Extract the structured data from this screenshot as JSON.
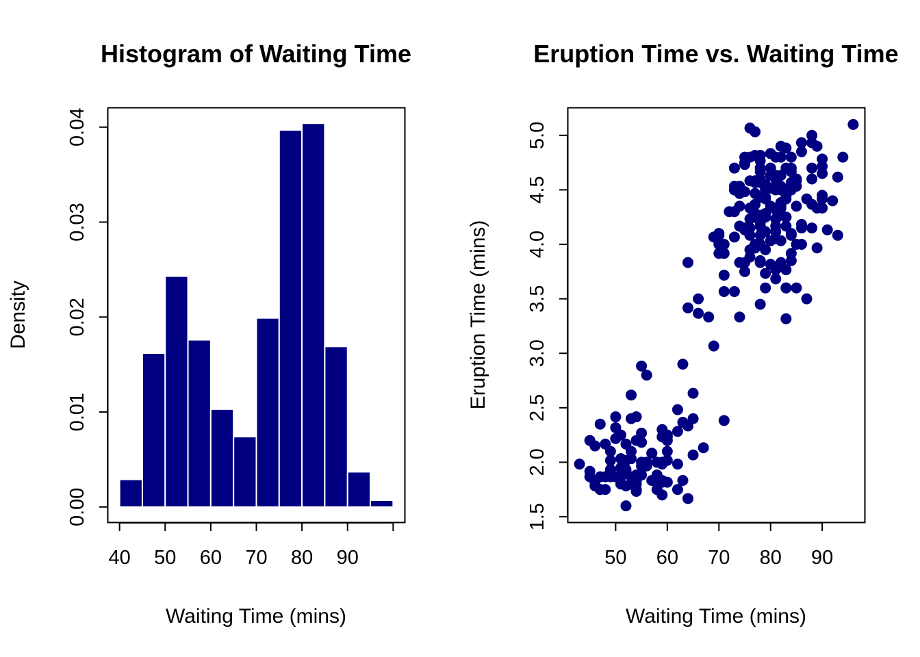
{
  "colors": {
    "mark": "#000080",
    "bar_border": "#ffffff",
    "axis": "#000000"
  },
  "chart_data": [
    {
      "type": "bar",
      "title": "Histogram of Waiting Time",
      "xlabel": "Waiting Time (mins)",
      "ylabel": "Density",
      "bins": [
        {
          "start": 40,
          "end": 45,
          "density": 0.0029
        },
        {
          "start": 45,
          "end": 50,
          "density": 0.0162
        },
        {
          "start": 50,
          "end": 55,
          "density": 0.0243
        },
        {
          "start": 55,
          "end": 60,
          "density": 0.0176
        },
        {
          "start": 60,
          "end": 65,
          "density": 0.0103
        },
        {
          "start": 65,
          "end": 70,
          "density": 0.0074
        },
        {
          "start": 70,
          "end": 75,
          "density": 0.0199
        },
        {
          "start": 75,
          "end": 80,
          "density": 0.0397
        },
        {
          "start": 80,
          "end": 85,
          "density": 0.0404
        },
        {
          "start": 85,
          "end": 90,
          "density": 0.0169
        },
        {
          "start": 90,
          "end": 95,
          "density": 0.0037
        },
        {
          "start": 95,
          "end": 100,
          "density": 0.0007
        }
      ],
      "xlim": [
        37.5,
        102.5
      ],
      "ylim": [
        -0.0016,
        0.042
      ],
      "xticks": [
        40,
        50,
        60,
        70,
        80,
        90,
        100
      ],
      "xtick_labels": [
        "40",
        "50",
        "60",
        "70",
        "80",
        "90",
        ""
      ],
      "yticks": [
        0,
        0.01,
        0.02,
        0.03,
        0.04
      ],
      "ytick_labels": [
        "0.00",
        "0.01",
        "0.02",
        "0.03",
        "0.04"
      ],
      "grid": false
    },
    {
      "type": "scatter",
      "title": "Eruption Time vs. Waiting Time",
      "xlabel": "Waiting Time (mins)",
      "ylabel": "Eruption Time (mins)",
      "xlim": [
        40.8,
        98.2
      ],
      "ylim": [
        1.45,
        5.25
      ],
      "xticks": [
        50,
        60,
        70,
        80,
        90
      ],
      "xtick_labels": [
        "50",
        "60",
        "70",
        "80",
        "90"
      ],
      "yticks": [
        1.5,
        2.0,
        2.5,
        3.0,
        3.5,
        4.0,
        4.5,
        5.0
      ],
      "ytick_labels": [
        "1.5",
        "2.0",
        "2.5",
        "3.0",
        "3.5",
        "4.0",
        "4.5",
        "5.0"
      ],
      "grid": false,
      "points": [
        [
          79,
          3.6
        ],
        [
          54,
          1.8
        ],
        [
          74,
          3.333
        ],
        [
          62,
          2.283
        ],
        [
          85,
          4.533
        ],
        [
          55,
          2.883
        ],
        [
          88,
          4.7
        ],
        [
          85,
          3.6
        ],
        [
          51,
          1.95
        ],
        [
          85,
          4.35
        ],
        [
          54,
          1.833
        ],
        [
          84,
          3.917
        ],
        [
          78,
          4.2
        ],
        [
          47,
          1.75
        ],
        [
          83,
          4.7
        ],
        [
          52,
          2.167
        ],
        [
          62,
          1.75
        ],
        [
          84,
          4.8
        ],
        [
          52,
          1.6
        ],
        [
          79,
          4.25
        ],
        [
          51,
          1.8
        ],
        [
          47,
          1.75
        ],
        [
          78,
          3.45
        ],
        [
          69,
          3.067
        ],
        [
          74,
          4.533
        ],
        [
          83,
          3.6
        ],
        [
          55,
          1.967
        ],
        [
          76,
          4.083
        ],
        [
          78,
          3.85
        ],
        [
          79,
          4.433
        ],
        [
          73,
          4.3
        ],
        [
          77,
          4.467
        ],
        [
          66,
          3.367
        ],
        [
          80,
          4.033
        ],
        [
          74,
          3.833
        ],
        [
          52,
          2.017
        ],
        [
          48,
          1.867
        ],
        [
          80,
          4.833
        ],
        [
          59,
          1.833
        ],
        [
          90,
          4.783
        ],
        [
          80,
          4.35
        ],
        [
          58,
          1.883
        ],
        [
          84,
          4.567
        ],
        [
          58,
          1.75
        ],
        [
          73,
          4.533
        ],
        [
          83,
          3.317
        ],
        [
          64,
          3.833
        ],
        [
          53,
          2.1
        ],
        [
          82,
          4.633
        ],
        [
          59,
          2.0
        ],
        [
          75,
          4.8
        ],
        [
          90,
          4.716
        ],
        [
          54,
          1.833
        ],
        [
          80,
          4.833
        ],
        [
          54,
          1.733
        ],
        [
          83,
          4.883
        ],
        [
          71,
          3.717
        ],
        [
          64,
          1.667
        ],
        [
          77,
          4.567
        ],
        [
          81,
          4.317
        ],
        [
          59,
          2.233
        ],
        [
          84,
          4.5
        ],
        [
          48,
          1.75
        ],
        [
          82,
          4.8
        ],
        [
          60,
          1.817
        ],
        [
          92,
          4.4
        ],
        [
          78,
          4.167
        ],
        [
          78,
          4.7
        ],
        [
          65,
          2.067
        ],
        [
          73,
          4.7
        ],
        [
          82,
          4.033
        ],
        [
          56,
          1.967
        ],
        [
          79,
          4.5
        ],
        [
          71,
          4.0
        ],
        [
          62,
          1.983
        ],
        [
          76,
          5.067
        ],
        [
          60,
          2.017
        ],
        [
          78,
          4.567
        ],
        [
          76,
          3.883
        ],
        [
          83,
          3.6
        ],
        [
          75,
          4.133
        ],
        [
          82,
          4.333
        ],
        [
          70,
          4.1
        ],
        [
          65,
          2.633
        ],
        [
          73,
          4.067
        ],
        [
          88,
          4.933
        ],
        [
          76,
          3.95
        ],
        [
          80,
          4.517
        ],
        [
          48,
          2.167
        ],
        [
          86,
          4.0
        ],
        [
          60,
          2.2
        ],
        [
          90,
          4.333
        ],
        [
          50,
          1.867
        ],
        [
          78,
          4.817
        ],
        [
          63,
          1.833
        ],
        [
          72,
          4.3
        ],
        [
          84,
          4.667
        ],
        [
          75,
          3.75
        ],
        [
          51,
          1.867
        ],
        [
          82,
          4.9
        ],
        [
          62,
          2.483
        ],
        [
          88,
          4.367
        ],
        [
          49,
          2.1
        ],
        [
          83,
          4.5
        ],
        [
          81,
          4.05
        ],
        [
          47,
          1.867
        ],
        [
          84,
          4.7
        ],
        [
          52,
          1.783
        ],
        [
          86,
          4.85
        ],
        [
          81,
          3.683
        ],
        [
          75,
          4.733
        ],
        [
          59,
          2.3
        ],
        [
          89,
          4.9
        ],
        [
          79,
          4.417
        ],
        [
          59,
          1.7
        ],
        [
          81,
          4.633
        ],
        [
          50,
          2.317
        ],
        [
          85,
          4.6
        ],
        [
          59,
          1.817
        ],
        [
          87,
          4.417
        ],
        [
          53,
          2.617
        ],
        [
          69,
          4.067
        ],
        [
          77,
          4.25
        ],
        [
          56,
          1.967
        ],
        [
          88,
          4.6
        ],
        [
          81,
          3.767
        ],
        [
          45,
          1.917
        ],
        [
          82,
          4.5
        ],
        [
          55,
          2.267
        ],
        [
          90,
          4.65
        ],
        [
          45,
          1.867
        ],
        [
          83,
          4.167
        ],
        [
          56,
          2.8
        ],
        [
          89,
          4.333
        ],
        [
          46,
          1.833
        ],
        [
          82,
          4.383
        ],
        [
          51,
          1.883
        ],
        [
          86,
          4.933
        ],
        [
          53,
          2.033
        ],
        [
          79,
          3.733
        ],
        [
          81,
          4.233
        ],
        [
          60,
          2.233
        ],
        [
          82,
          4.533
        ],
        [
          77,
          4.817
        ],
        [
          76,
          4.333
        ],
        [
          59,
          1.983
        ],
        [
          80,
          4.633
        ],
        [
          49,
          2.017
        ],
        [
          96,
          5.1
        ],
        [
          53,
          1.8
        ],
        [
          77,
          5.033
        ],
        [
          77,
          4.0
        ],
        [
          65,
          2.4
        ],
        [
          81,
          4.6
        ],
        [
          71,
          3.567
        ],
        [
          70,
          4.0
        ],
        [
          81,
          4.5
        ],
        [
          93,
          4.083
        ],
        [
          53,
          1.8
        ],
        [
          89,
          3.967
        ],
        [
          45,
          2.2
        ],
        [
          86,
          4.15
        ],
        [
          58,
          2.0
        ],
        [
          78,
          3.833
        ],
        [
          66,
          3.5
        ],
        [
          76,
          4.583
        ],
        [
          63,
          2.367
        ],
        [
          88,
          5.0
        ],
        [
          52,
          1.933
        ],
        [
          93,
          4.617
        ],
        [
          49,
          1.917
        ],
        [
          57,
          2.083
        ],
        [
          77,
          4.583
        ],
        [
          68,
          3.333
        ],
        [
          81,
          4.167
        ],
        [
          81,
          4.333
        ],
        [
          73,
          4.5
        ],
        [
          50,
          2.417
        ],
        [
          85,
          4.0
        ],
        [
          74,
          4.167
        ],
        [
          55,
          1.883
        ],
        [
          77,
          4.583
        ],
        [
          83,
          4.25
        ],
        [
          83,
          3.767
        ],
        [
          51,
          2.033
        ],
        [
          78,
          4.433
        ],
        [
          84,
          4.083
        ],
        [
          46,
          1.833
        ],
        [
          83,
          4.417
        ],
        [
          55,
          2.183
        ],
        [
          81,
          4.8
        ],
        [
          57,
          1.833
        ],
        [
          76,
          4.8
        ],
        [
          84,
          4.1
        ],
        [
          77,
          3.966
        ],
        [
          81,
          4.233
        ],
        [
          87,
          3.5
        ],
        [
          77,
          4.366
        ],
        [
          51,
          2.25
        ],
        [
          78,
          4.667
        ],
        [
          60,
          2.1
        ],
        [
          82,
          4.35
        ],
        [
          91,
          4.133
        ],
        [
          53,
          1.867
        ],
        [
          78,
          4.6
        ],
        [
          46,
          1.783
        ],
        [
          77,
          4.367
        ],
        [
          84,
          3.85
        ],
        [
          49,
          1.933
        ],
        [
          83,
          4.5
        ],
        [
          71,
          2.383
        ],
        [
          80,
          4.7
        ],
        [
          49,
          1.867
        ],
        [
          75,
          3.833
        ],
        [
          64,
          3.417
        ],
        [
          76,
          4.233
        ],
        [
          53,
          2.4
        ],
        [
          94,
          4.8
        ],
        [
          55,
          2.0
        ],
        [
          76,
          4.15
        ],
        [
          50,
          1.867
        ],
        [
          82,
          4.267
        ],
        [
          54,
          1.75
        ],
        [
          75,
          4.483
        ],
        [
          78,
          4.0
        ],
        [
          79,
          4.117
        ],
        [
          78,
          4.083
        ],
        [
          78,
          4.267
        ],
        [
          70,
          3.917
        ],
        [
          79,
          4.55
        ],
        [
          70,
          4.083
        ],
        [
          54,
          2.417
        ],
        [
          86,
          4.183
        ],
        [
          50,
          2.217
        ],
        [
          90,
          4.45
        ],
        [
          54,
          1.883
        ],
        [
          54,
          1.85
        ],
        [
          77,
          4.283
        ],
        [
          79,
          3.95
        ],
        [
          64,
          2.333
        ],
        [
          75,
          4.15
        ],
        [
          47,
          2.35
        ],
        [
          86,
          4.933
        ],
        [
          63,
          2.9
        ],
        [
          85,
          4.583
        ],
        [
          82,
          3.833
        ],
        [
          57,
          2.083
        ],
        [
          82,
          4.367
        ],
        [
          67,
          2.133
        ],
        [
          74,
          4.35
        ],
        [
          54,
          2.2
        ],
        [
          83,
          4.45
        ],
        [
          73,
          3.567
        ],
        [
          73,
          4.5
        ],
        [
          88,
          4.15
        ],
        [
          80,
          3.817
        ],
        [
          71,
          3.917
        ],
        [
          83,
          4.45
        ],
        [
          56,
          2.0
        ],
        [
          79,
          4.283
        ],
        [
          78,
          4.767
        ],
        [
          84,
          4.533
        ],
        [
          58,
          1.85
        ],
        [
          83,
          4.25
        ],
        [
          43,
          1.983
        ],
        [
          60,
          2.25
        ],
        [
          75,
          4.75
        ],
        [
          81,
          4.117
        ],
        [
          46,
          2.15
        ],
        [
          90,
          4.417
        ],
        [
          46,
          1.817
        ],
        [
          74,
          4.467
        ]
      ]
    }
  ]
}
